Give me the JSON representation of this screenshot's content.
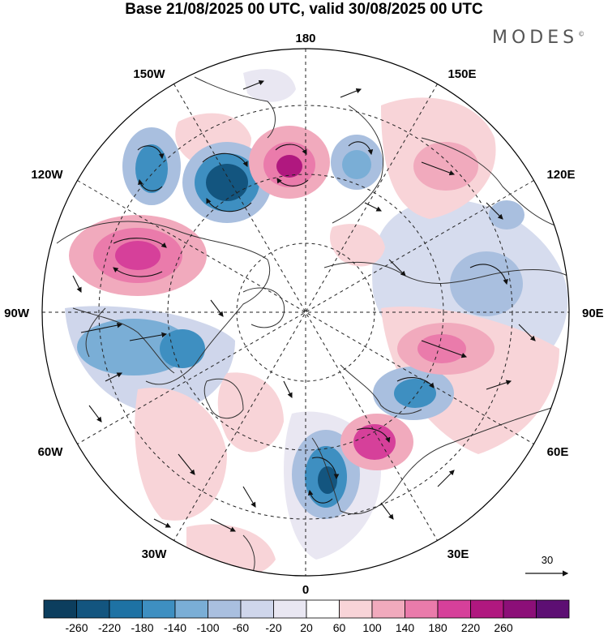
{
  "title": "Base 21/08/2025 00 UTC, valid 30/08/2025 00 UTC",
  "brand": "MODES",
  "brand_mark": "©",
  "projection": "north-polar-stereographic",
  "longitude_labels": {
    "top": "180",
    "bottom": "0",
    "left": "90W",
    "right": "90E",
    "upper_left": "150W",
    "upper_right": "150E",
    "left_upper": "120W",
    "right_upper": "120E",
    "left_lower": "60W",
    "right_lower": "60E",
    "lower_left": "30W",
    "lower_right": "30E"
  },
  "vector_scale_label": "30",
  "colorbar": {
    "ticks": [
      "-260",
      "-220",
      "-180",
      "-140",
      "-100",
      "-60",
      "-20",
      "20",
      "60",
      "100",
      "140",
      "180",
      "220",
      "260"
    ],
    "colors": [
      "#0c3e5e",
      "#13557f",
      "#1e72a4",
      "#3e8fc1",
      "#7aaed6",
      "#a9bfdf",
      "#cfd6eb",
      "#e9e7f2",
      "#ffffff",
      "#f8d4d8",
      "#f1aabd",
      "#ea7bab",
      "#d6409a",
      "#b0187f",
      "#8c0f78",
      "#5d0f73"
    ]
  },
  "anomaly_cells": [
    {
      "region": "eastern-pacific-gulf-of-alaska",
      "sign": "negative",
      "level": -180
    },
    {
      "region": "bering-sea",
      "sign": "positive",
      "level": 180
    },
    {
      "region": "northeast-pacific",
      "sign": "negative",
      "level": -140
    },
    {
      "region": "western-canada",
      "sign": "positive",
      "level": 180
    },
    {
      "region": "hudson-bay-labrador",
      "sign": "negative",
      "level": -100
    },
    {
      "region": "norwegian-sea",
      "sign": "negative",
      "level": -140
    },
    {
      "region": "west-siberia",
      "sign": "positive",
      "level": 140
    },
    {
      "region": "kara-sea",
      "sign": "negative",
      "level": -140
    },
    {
      "region": "central-siberia",
      "sign": "positive",
      "level": 100
    },
    {
      "region": "east-asia",
      "sign": "negative",
      "level": -100
    }
  ]
}
